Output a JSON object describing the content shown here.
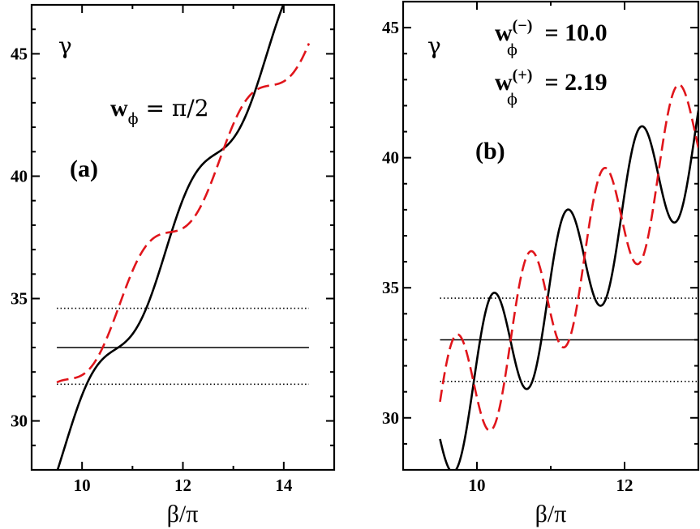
{
  "chart_data": [
    {
      "panel": "(a)",
      "type": "line",
      "xlabel": "β/π",
      "ylabel": "γ",
      "xlim": [
        9.0,
        15.0
      ],
      "ylim": [
        28.0,
        47.0
      ],
      "xticks": [
        10,
        12,
        14
      ],
      "yticks": [
        30,
        35,
        40,
        45
      ],
      "annotation": {
        "w": "w",
        "sub": "ϕ",
        "rest": " = π/2"
      },
      "hlines": [
        {
          "name": "dotted-upper",
          "y": 34.6,
          "style": "dotted",
          "x": [
            9.5,
            14.5
          ]
        },
        {
          "name": "solid-middle",
          "y": 33.0,
          "style": "solid",
          "x": [
            9.5,
            14.5
          ]
        },
        {
          "name": "dotted-lower",
          "y": 31.5,
          "style": "dotted",
          "x": [
            9.5,
            14.5
          ]
        }
      ],
      "series": [
        {
          "name": "solid-black",
          "color": "#000000",
          "style": "solid",
          "base": [
            28.3,
            4.0
          ],
          "amp": 0.85,
          "period": 2.0,
          "phase": 5.8,
          "xrange": [
            9.5,
            14.5
          ]
        },
        {
          "name": "dashed-red",
          "color": "#e0151b",
          "style": "dashed",
          "base": [
            31.0,
            3.0
          ],
          "amp": 0.85,
          "period": 2.0,
          "phase": 2.4,
          "xrange": [
            9.5,
            14.5
          ]
        }
      ]
    },
    {
      "panel": "(b)",
      "type": "line",
      "xlabel": "β/π",
      "ylabel": "γ",
      "xlim": [
        9.0,
        13.0
      ],
      "ylim": [
        28.0,
        46.0
      ],
      "xticks": [
        10,
        12
      ],
      "yticks": [
        30,
        35,
        40,
        45
      ],
      "annotation": [
        {
          "w": "w",
          "sup": "(−)",
          "sub": "ϕ",
          "rest": " = 10.0"
        },
        {
          "w": "w",
          "sup": "(+)",
          "sub": "ϕ",
          "rest": " = 2.19"
        }
      ],
      "hlines": [
        {
          "name": "dotted-upper",
          "y": 34.6,
          "style": "dotted",
          "x": [
            9.5,
            13.0
          ]
        },
        {
          "name": "solid-middle",
          "y": 33.0,
          "style": "solid",
          "x": [
            9.5,
            13.0
          ]
        },
        {
          "name": "dotted-lower",
          "y": 31.4,
          "style": "dotted",
          "x": [
            9.5,
            13.0
          ]
        }
      ],
      "series": [
        {
          "name": "solid-black",
          "color": "#000000",
          "style": "solid",
          "base": [
            29.9,
            3.2
          ],
          "amp": 2.6,
          "period": 1.0,
          "phase": 3.42,
          "xrange": [
            9.5,
            13.0
          ]
        },
        {
          "name": "dashed-red",
          "color": "#e0151b",
          "style": "dashed",
          "base": [
            29.9,
            3.2
          ],
          "amp": 2.6,
          "period": 1.0,
          "phase": 0.28,
          "xrange": [
            9.5,
            13.0
          ]
        }
      ]
    }
  ]
}
